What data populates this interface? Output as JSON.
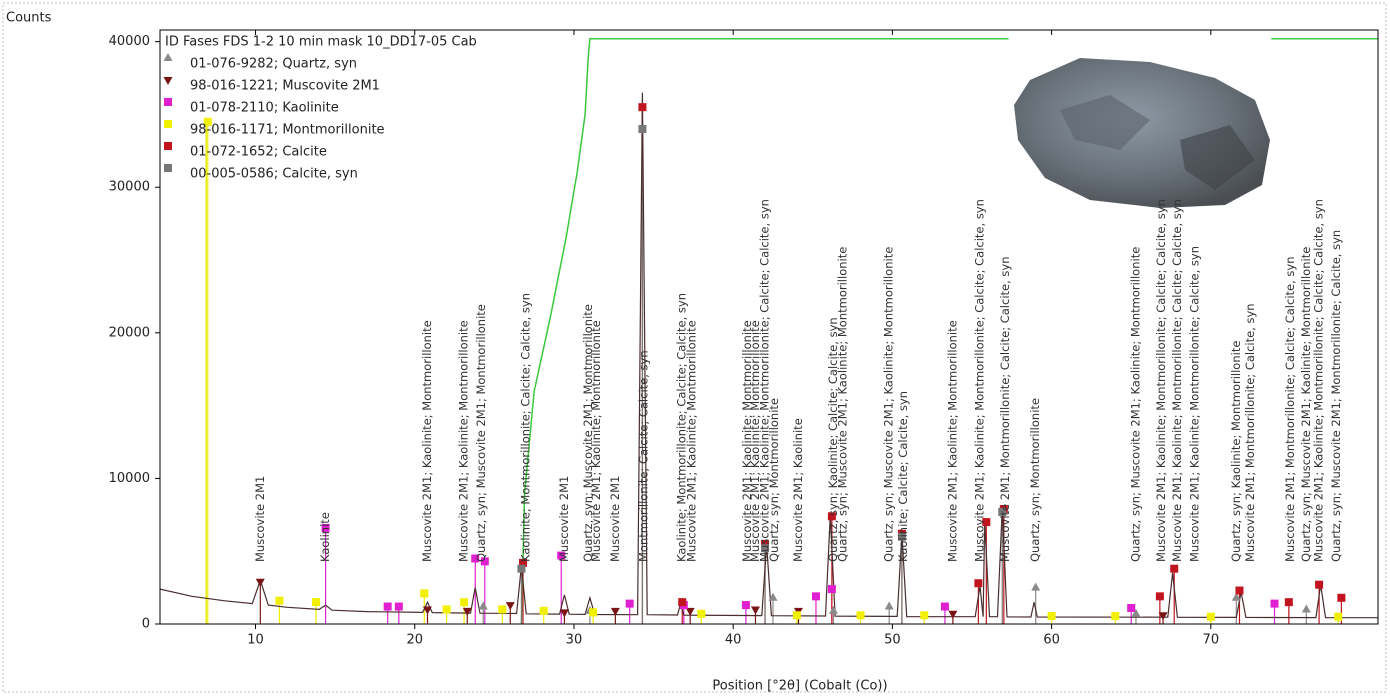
{
  "chart_data": {
    "type": "line",
    "y_label": "Counts",
    "x_label": "Position [°2θ] (Cobalt (Co))",
    "legend_title": "ID Fases FDS 1-2 10 min mask 10_DD17-05 Cab",
    "xlim": [
      4,
      80.5
    ],
    "ylim": [
      0,
      40800
    ],
    "xticks": [
      10,
      20,
      30,
      40,
      50,
      60,
      70
    ],
    "yticks": [
      0,
      10000,
      20000,
      30000,
      40000
    ],
    "pattern": {
      "color": "#4a2e2e",
      "x": [
        4,
        6,
        8,
        9.8,
        10.3,
        10.8,
        12,
        14.0,
        14.4,
        14.8,
        17,
        20.5,
        20.8,
        21.1,
        23.5,
        23.8,
        24.1,
        26.4,
        26.7,
        27.0,
        29.1,
        29.4,
        29.7,
        30.7,
        31.0,
        31.3,
        34.0,
        34.3,
        34.6,
        36.5,
        36.7,
        36.9,
        41.8,
        42.1,
        42.4,
        45.8,
        46.1,
        46.4,
        50.3,
        50.6,
        50.9,
        55.2,
        55.5,
        55.7,
        55.8,
        56.1,
        56.6,
        56.9,
        57.2,
        58.7,
        58.9,
        59.1,
        67.3,
        67.6,
        67.9,
        71.6,
        71.9,
        72.2,
        76.6,
        76.9,
        77.2,
        80.5
      ],
      "values": [
        2400,
        1900,
        1600,
        1400,
        3000,
        1300,
        1150,
        1000,
        1300,
        950,
        850,
        800,
        1500,
        780,
        750,
        2500,
        740,
        720,
        4000,
        700,
        680,
        2000,
        670,
        660,
        1800,
        650,
        640,
        36500,
        640,
        620,
        1400,
        610,
        580,
        5500,
        570,
        550,
        7500,
        540,
        520,
        6200,
        510,
        500,
        2600,
        500,
        7000,
        500,
        500,
        8000,
        490,
        480,
        1500,
        480,
        470,
        3500,
        460,
        450,
        2200,
        450,
        440,
        2700,
        440,
        430
      ]
    },
    "fit": {
      "color": "#3cc83c",
      "x": [
        26.7,
        26.9,
        27.5,
        28.5,
        29.5,
        30.2,
        30.7,
        30.9,
        31.0,
        57.3,
        57.4,
        73.8,
        80.5
      ],
      "values": [
        0,
        9000,
        16000,
        21000,
        26500,
        31000,
        35000,
        39000,
        40200,
        40200,
        null,
        40200,
        40200
      ]
    },
    "marker_line": {
      "color": "#e8e820",
      "x": [
        6.9,
        6.9
      ],
      "values": [
        0,
        34500
      ]
    },
    "phases": [
      {
        "name": "01-076-9282; Quartz, syn",
        "color": "#8a8a8a",
        "marker": "triangle-up",
        "x": [
          24.3,
          31.0,
          42.5,
          46.3,
          49.8,
          59.0,
          65.3,
          71.6,
          76.0
        ],
        "values": [
          1200,
          900,
          1800,
          900,
          1200,
          2500,
          700,
          1800,
          1000
        ]
      },
      {
        "name": "98-016-1221; Muscovite 2M1",
        "color": "#7a1414",
        "marker": "triangle-down",
        "x": [
          10.3,
          20.8,
          23.3,
          26.0,
          29.4,
          32.6,
          37.3,
          41.4,
          44.1,
          53.8,
          67.0
        ],
        "values": [
          2900,
          1000,
          900,
          1300,
          800,
          900,
          900,
          1000,
          900,
          700,
          600
        ]
      },
      {
        "name": "01-078-2110; Kaolinite",
        "color": "#e020d0",
        "marker": "square",
        "x": [
          14.4,
          18.3,
          19.0,
          23.8,
          24.4,
          29.2,
          33.5,
          36.9,
          40.8,
          45.2,
          46.2,
          53.3,
          65.0,
          74.0
        ],
        "values": [
          6600,
          1200,
          1200,
          4500,
          4300,
          4700,
          1400,
          1300,
          1300,
          1900,
          2400,
          1200,
          1100,
          1400
        ]
      },
      {
        "name": "98-016-1171; Montmorillonite",
        "color": "#f0f000",
        "marker": "square",
        "x": [
          7.0,
          11.5,
          13.8,
          20.6,
          22.0,
          23.1,
          25.5,
          28.1,
          31.2,
          38.0,
          44.0,
          48.0,
          52.0,
          60.0,
          64.0,
          70.0,
          78.0
        ],
        "values": [
          34500,
          1600,
          1500,
          2100,
          1000,
          1500,
          1000,
          900,
          800,
          700,
          600,
          600,
          600,
          550,
          550,
          500,
          500
        ]
      },
      {
        "name": "01-072-1652; Calcite",
        "color": "#c0141e",
        "marker": "square",
        "x": [
          26.8,
          34.3,
          36.8,
          42.0,
          46.2,
          50.6,
          55.4,
          55.9,
          57.0,
          66.8,
          67.7,
          71.8,
          74.9,
          76.8,
          78.2
        ],
        "values": [
          4200,
          35500,
          1500,
          5500,
          7400,
          6200,
          2800,
          7000,
          7900,
          1900,
          3800,
          2300,
          1500,
          2700,
          1800
        ]
      },
      {
        "name": "00-005-0586; Calcite, syn",
        "color": "#777777",
        "marker": "square",
        "x": [
          26.7,
          34.3,
          42.0,
          50.6,
          56.9
        ],
        "values": [
          3800,
          34000,
          5200,
          6000,
          7700
        ]
      }
    ],
    "annotations": [
      {
        "x": 10.3,
        "text": "Muscovite 2M1"
      },
      {
        "x": 14.4,
        "text": "Kaolinite"
      },
      {
        "x": 20.8,
        "text": "Muscovite 2M1; Kaolinite; Montmorillonite"
      },
      {
        "x": 23.1,
        "text": "Muscovite 2M1; Kaolinite; Montmorillonite"
      },
      {
        "x": 24.2,
        "text": "Quartz, syn; Muscovite 2M1; Montmorillonite"
      },
      {
        "x": 27.0,
        "text": "Kaolinite; Montmorillonite; Calcite; Calcite, syn"
      },
      {
        "x": 29.4,
        "text": "Muscovite 2M1"
      },
      {
        "x": 30.9,
        "text": "Quartz, syn; Muscovite 2M1; Montmorillonite"
      },
      {
        "x": 31.4,
        "text": "Muscovite 2M1; Kaolinite; Montmorillonite"
      },
      {
        "x": 32.6,
        "text": "Muscovite 2M1"
      },
      {
        "x": 34.4,
        "text": "Montmorillonite; Calcite; Calcite, syn"
      },
      {
        "x": 36.8,
        "text": "Kaolinite; Montmorillonite; Calcite; Calcite, syn"
      },
      {
        "x": 37.4,
        "text": "Muscovite 2M1; Kaolinite; Montmorillonite"
      },
      {
        "x": 40.9,
        "text": "Muscovite 2M1; Kaolinite; Montmorillonite"
      },
      {
        "x": 41.4,
        "text": "Muscovite 2M1; Kaolinite; Montmorillonite"
      },
      {
        "x": 42.0,
        "text": "Muscovite 2M1; Kaolinite; Montmorillonite; Calcite; Calcite, syn"
      },
      {
        "x": 42.6,
        "text": "Quartz, syn; Montmorillonite"
      },
      {
        "x": 44.1,
        "text": "Muscovite 2M1; Kaolinite"
      },
      {
        "x": 46.3,
        "text": "Quartz, syn; Kaolinite; Calcite; Calcite, syn"
      },
      {
        "x": 46.9,
        "text": "Quartz, syn; Muscovite 2M1; Kaolinite; Montmorillonite"
      },
      {
        "x": 49.8,
        "text": "Quartz, syn; Muscovite 2M1; Kaolinite; Montmorillonite"
      },
      {
        "x": 50.7,
        "text": "Kaolinite; Calcite; Calcite, syn"
      },
      {
        "x": 53.8,
        "text": "Muscovite 2M1; Kaolinite; Montmorillonite"
      },
      {
        "x": 55.5,
        "text": "Muscovite 2M1; Kaolinite; Montmorillonite; Calcite; Calcite, syn"
      },
      {
        "x": 57.1,
        "text": "Muscovite 2M1; Montmorillonite; Calcite; Calcite, syn"
      },
      {
        "x": 59.0,
        "text": "Quartz, syn; Montmorillonite"
      },
      {
        "x": 65.3,
        "text": "Quartz, syn; Muscovite 2M1; Kaolinite; Montmorillonite"
      },
      {
        "x": 66.9,
        "text": "Muscovite 2M1; Kaolinite; Montmorillonite; Calcite; Calcite, syn"
      },
      {
        "x": 67.9,
        "text": "Muscovite 2M1; Kaolinite; Montmorillonite; Calcite; Calcite, syn"
      },
      {
        "x": 69.0,
        "text": "Muscovite 2M1; Kaolinite; Montmorillonite; Calcite, syn"
      },
      {
        "x": 71.6,
        "text": "Quartz, syn; Kaolinite; Montmorillonite"
      },
      {
        "x": 72.5,
        "text": "Muscovite 2M1; Montmorillonite; Calcite, syn"
      },
      {
        "x": 75.0,
        "text": "Muscovite 2M1; Montmorillonite; Calcite; Calcite, syn"
      },
      {
        "x": 76.0,
        "text": "Quartz, syn; Muscovite 2M1; Kaolinite; Montmorillonite"
      },
      {
        "x": 76.8,
        "text": "Muscovite 2M1; Kaolinite; Montmorillonite; Calcite; Calcite, syn"
      },
      {
        "x": 77.9,
        "text": "Quartz, syn; Muscovite 2M1; Montmorillonite; Calcite, syn"
      }
    ]
  }
}
